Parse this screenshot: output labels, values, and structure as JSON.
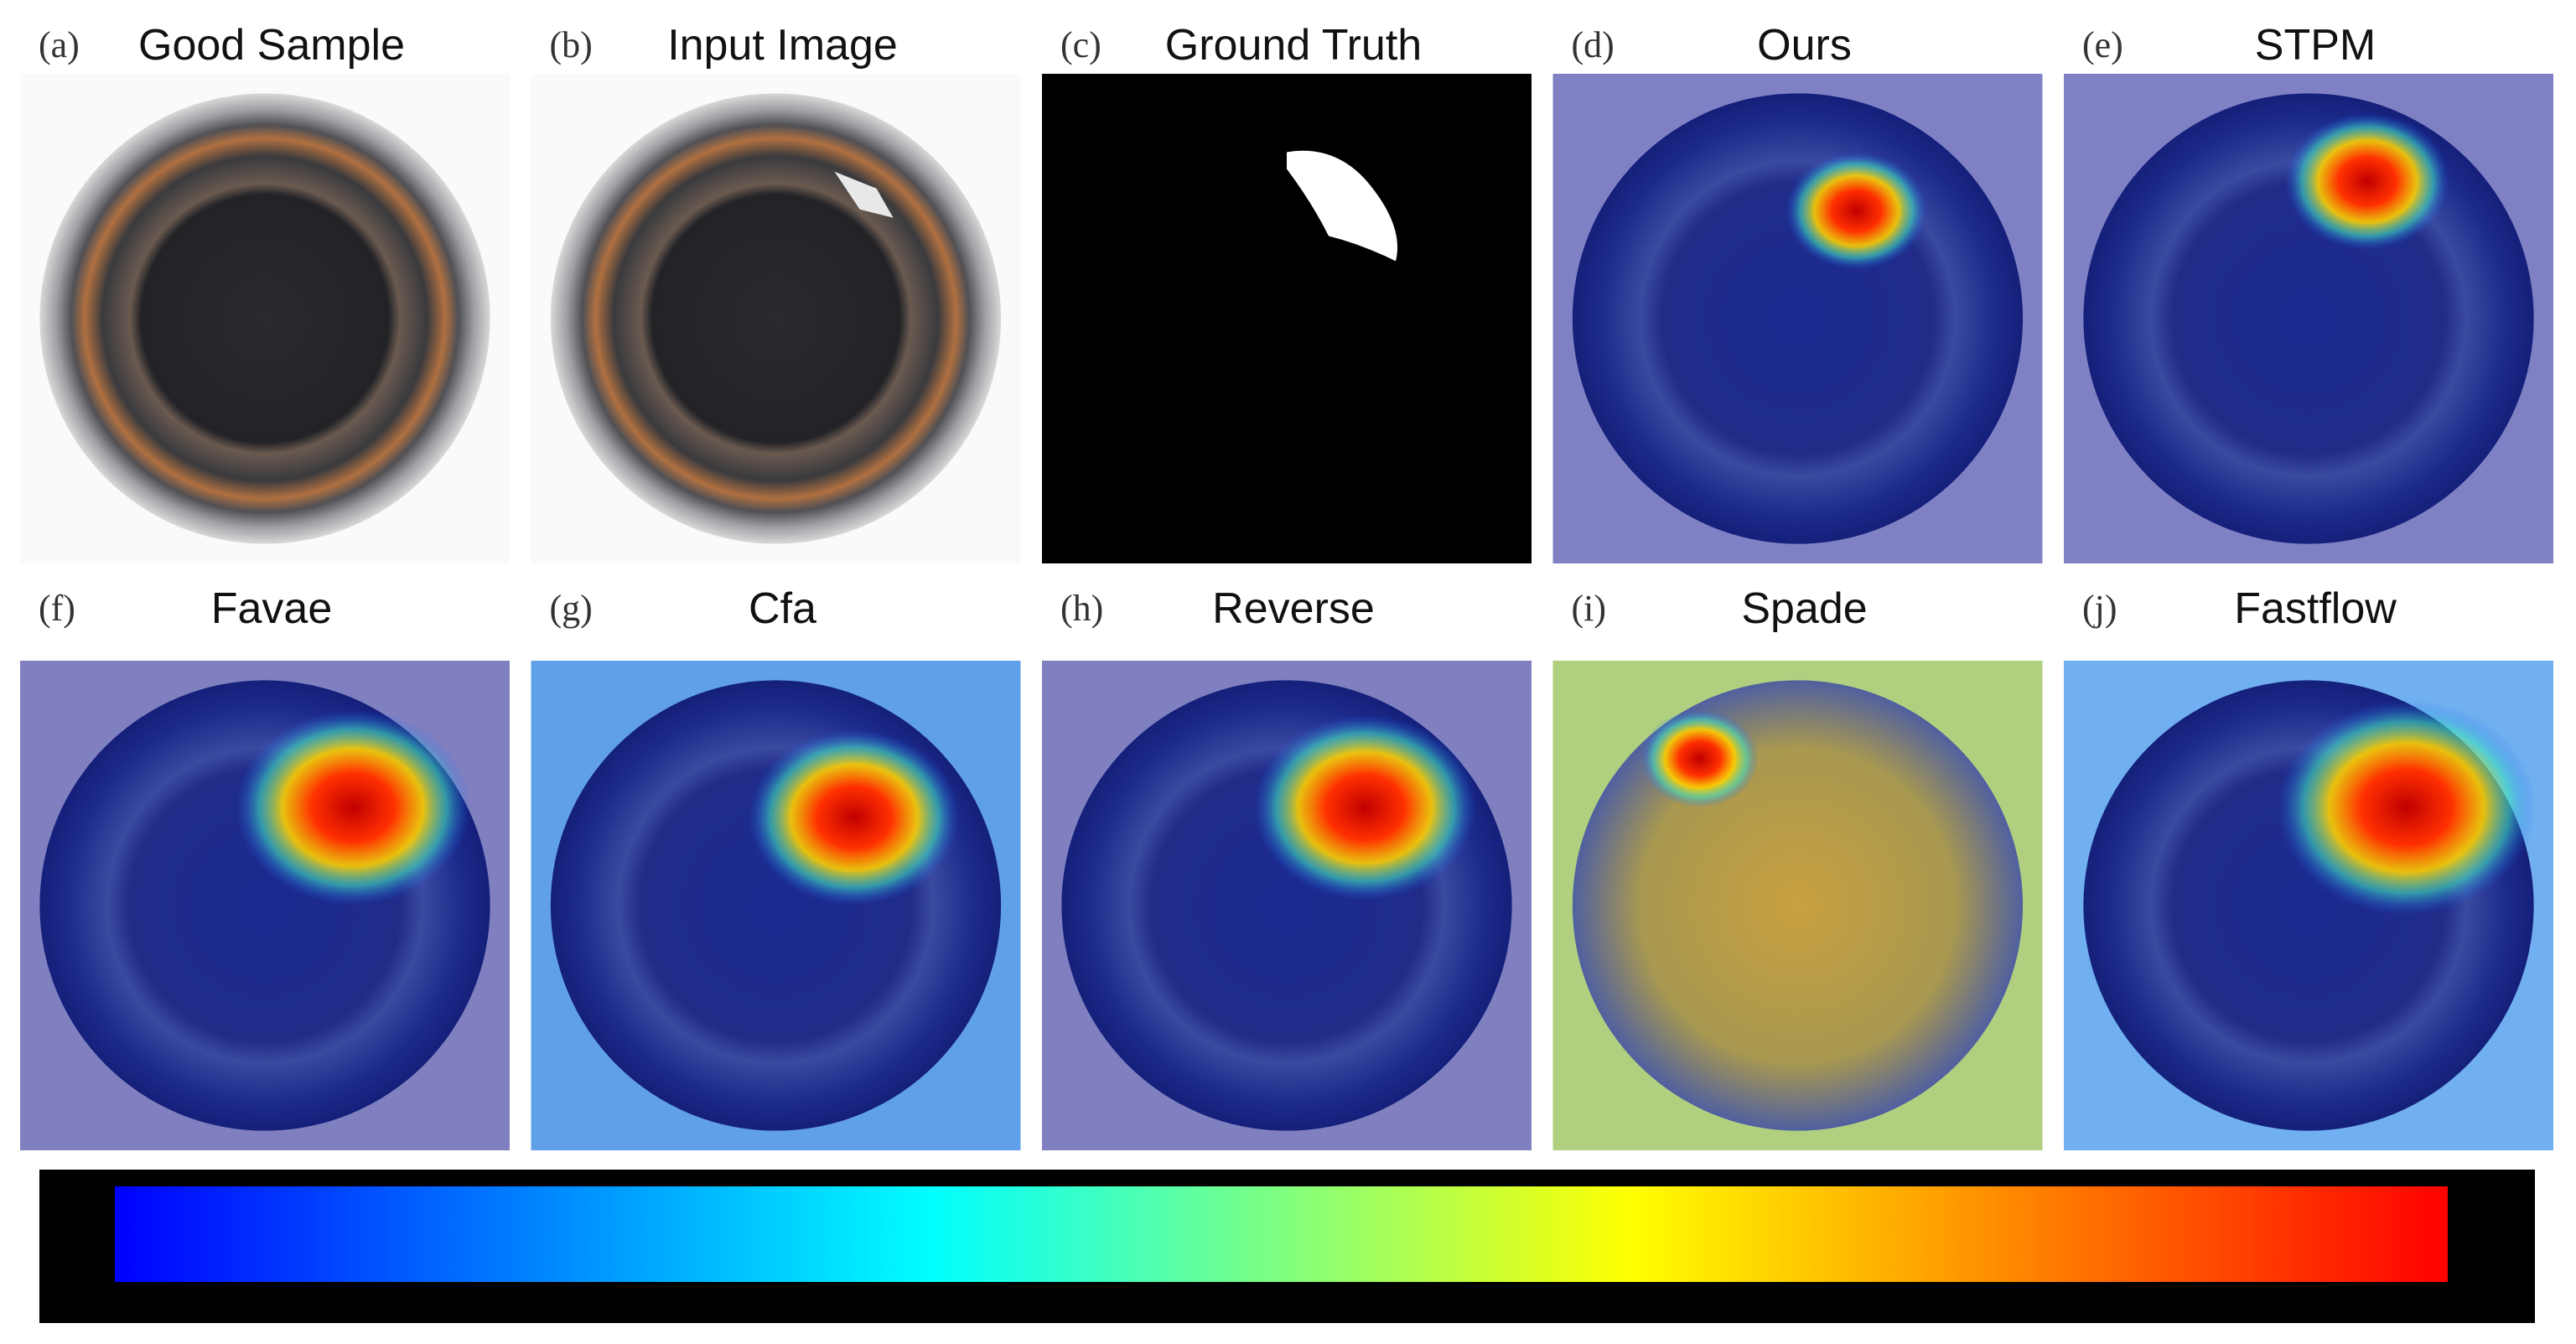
{
  "panels": [
    {
      "letter": "(a)",
      "title": "Good Sample"
    },
    {
      "letter": "(b)",
      "title": "Input Image"
    },
    {
      "letter": "(c)",
      "title": "Ground Truth"
    },
    {
      "letter": "(d)",
      "title": "Ours"
    },
    {
      "letter": "(e)",
      "title": "STPM"
    },
    {
      "letter": "(f)",
      "title": "Favae"
    },
    {
      "letter": "(g)",
      "title": "Cfa"
    },
    {
      "letter": "(h)",
      "title": "Reverse"
    },
    {
      "letter": "(i)",
      "title": "Spade"
    },
    {
      "letter": "(j)",
      "title": "Fastflow"
    }
  ]
}
